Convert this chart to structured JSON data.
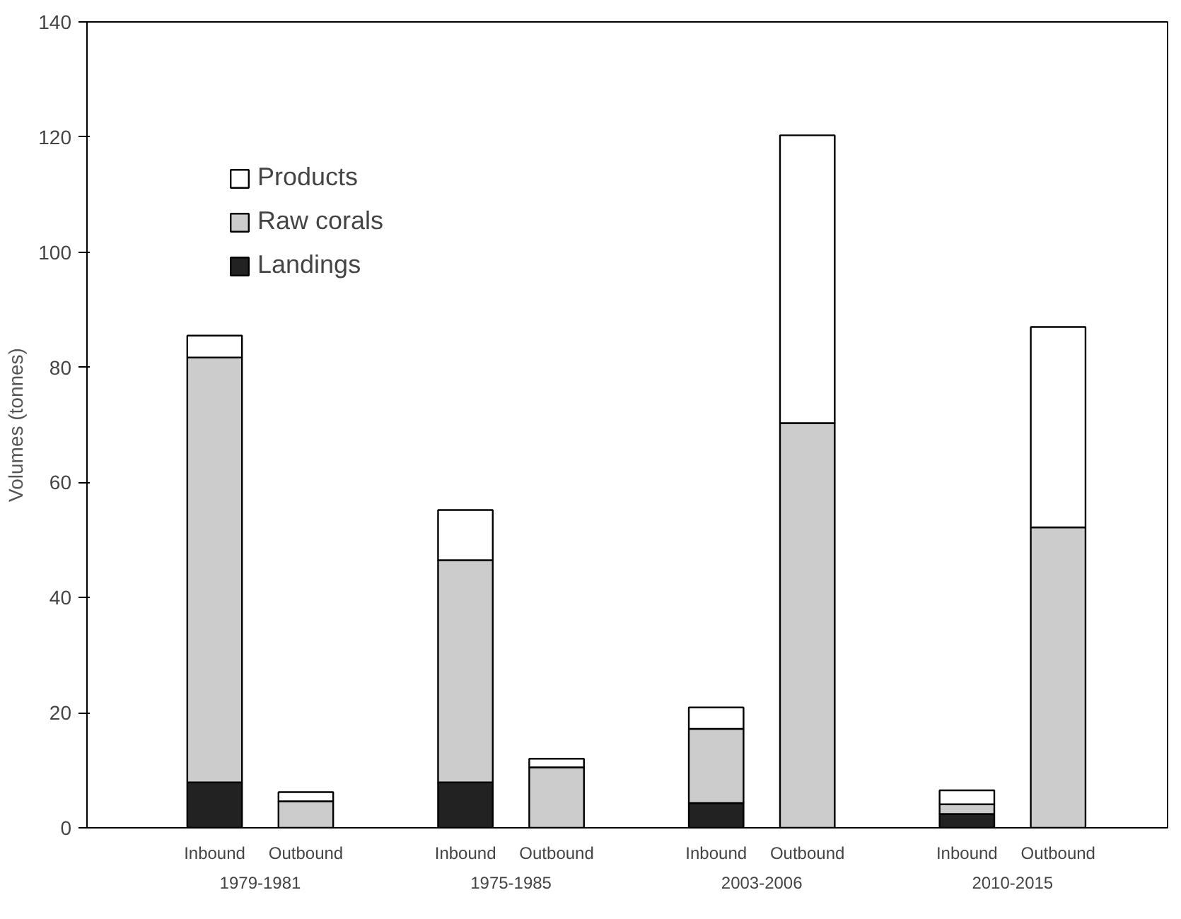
{
  "chart_data": {
    "type": "bar",
    "stacked": true,
    "ylabel": "Volumes (tonnes)",
    "categories": [
      "Inbound",
      "Outbound",
      "Inbound",
      "Outbound",
      "Inbound",
      "Outbound",
      "Inbound",
      "Outbound"
    ],
    "annotations": [
      "1979-1981",
      "1975-1985",
      "2003-2006",
      "2010-2015"
    ],
    "series": [
      {
        "name": "Landings",
        "color": "#222222",
        "values": [
          7.9,
          0,
          7.9,
          0,
          4.3,
          0,
          2.4,
          0
        ]
      },
      {
        "name": "Raw corals",
        "color": "#cccccc",
        "values": [
          73.8,
          4.6,
          38.6,
          10.5,
          12.9,
          70.3,
          1.7,
          52.2
        ]
      },
      {
        "name": "Products",
        "color": "#ffffff",
        "values": [
          3.8,
          1.6,
          8.7,
          1.5,
          3.7,
          50.0,
          2.4,
          34.8
        ]
      }
    ],
    "ylim": [
      0,
      140
    ],
    "yticks": [
      0,
      20,
      40,
      60,
      80,
      100,
      120,
      140
    ],
    "grid": false,
    "legend": "top left"
  }
}
